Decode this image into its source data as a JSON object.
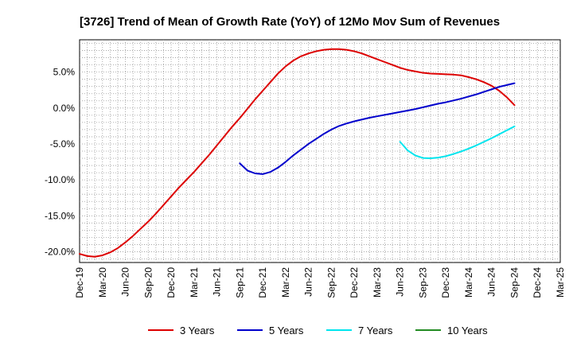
{
  "chart_data": {
    "type": "line",
    "title": "[3726]  Trend of Mean of Growth Rate (YoY) of 12Mo Mov Sum of Revenues",
    "xlabel": "",
    "ylabel": "",
    "ylim": [
      -21.5,
      9.5
    ],
    "y_ticks": [
      5,
      0,
      -5,
      -10,
      -15,
      -20
    ],
    "y_tick_labels": [
      "5.0%",
      "0.0%",
      "-5.0%",
      "-10.0%",
      "-15.0%",
      "-20.0%"
    ],
    "x_tick_labels": [
      "Dec-19",
      "Mar-20",
      "Jun-20",
      "Sep-20",
      "Dec-20",
      "Mar-21",
      "Jun-21",
      "Sep-21",
      "Dec-21",
      "Mar-22",
      "Jun-22",
      "Sep-22",
      "Dec-22",
      "Mar-23",
      "Jun-23",
      "Sep-23",
      "Dec-23",
      "Mar-24",
      "Jun-24",
      "Sep-24",
      "Dec-24",
      "Mar-25"
    ],
    "x_unit": "months since Dec-19",
    "xlim": [
      0,
      63
    ],
    "grid": true,
    "legend_position": "bottom",
    "series": [
      {
        "name": "3 Years",
        "color": "#dd0000",
        "points": [
          [
            0,
            -20.3
          ],
          [
            1,
            -20.6
          ],
          [
            2,
            -20.7
          ],
          [
            3,
            -20.5
          ],
          [
            4,
            -20.1
          ],
          [
            5,
            -19.5
          ],
          [
            6,
            -18.7
          ],
          [
            7,
            -17.8
          ],
          [
            8,
            -16.8
          ],
          [
            9,
            -15.8
          ],
          [
            10,
            -14.7
          ],
          [
            11,
            -13.5
          ],
          [
            12,
            -12.3
          ],
          [
            13,
            -11.1
          ],
          [
            14,
            -10.0
          ],
          [
            15,
            -8.9
          ],
          [
            16,
            -7.7
          ],
          [
            17,
            -6.5
          ],
          [
            18,
            -5.2
          ],
          [
            19,
            -3.9
          ],
          [
            20,
            -2.6
          ],
          [
            21,
            -1.4
          ],
          [
            22,
            -0.1
          ],
          [
            23,
            1.2
          ],
          [
            24,
            2.4
          ],
          [
            25,
            3.6
          ],
          [
            26,
            4.8
          ],
          [
            27,
            5.8
          ],
          [
            28,
            6.6
          ],
          [
            29,
            7.2
          ],
          [
            30,
            7.6
          ],
          [
            31,
            7.9
          ],
          [
            32,
            8.1
          ],
          [
            33,
            8.2
          ],
          [
            34,
            8.2
          ],
          [
            35,
            8.1
          ],
          [
            36,
            7.9
          ],
          [
            37,
            7.6
          ],
          [
            38,
            7.2
          ],
          [
            39,
            6.8
          ],
          [
            40,
            6.4
          ],
          [
            41,
            6.0
          ],
          [
            42,
            5.6
          ],
          [
            43,
            5.3
          ],
          [
            44,
            5.1
          ],
          [
            45,
            4.9
          ],
          [
            46,
            4.8
          ],
          [
            47,
            4.75
          ],
          [
            48,
            4.7
          ],
          [
            49,
            4.65
          ],
          [
            50,
            4.55
          ],
          [
            51,
            4.3
          ],
          [
            52,
            4.0
          ],
          [
            53,
            3.6
          ],
          [
            54,
            3.1
          ],
          [
            55,
            2.4
          ],
          [
            56,
            1.5
          ],
          [
            57,
            0.4
          ]
        ]
      },
      {
        "name": "5 Years",
        "color": "#0000cc",
        "points": [
          [
            21,
            -7.7
          ],
          [
            22,
            -8.7
          ],
          [
            23,
            -9.1
          ],
          [
            24,
            -9.2
          ],
          [
            25,
            -8.9
          ],
          [
            26,
            -8.3
          ],
          [
            27,
            -7.5
          ],
          [
            28,
            -6.6
          ],
          [
            29,
            -5.8
          ],
          [
            30,
            -5.0
          ],
          [
            31,
            -4.3
          ],
          [
            32,
            -3.6
          ],
          [
            33,
            -3.0
          ],
          [
            34,
            -2.5
          ],
          [
            35,
            -2.15
          ],
          [
            36,
            -1.85
          ],
          [
            37,
            -1.6
          ],
          [
            38,
            -1.35
          ],
          [
            39,
            -1.15
          ],
          [
            40,
            -0.95
          ],
          [
            41,
            -0.75
          ],
          [
            42,
            -0.55
          ],
          [
            43,
            -0.35
          ],
          [
            44,
            -0.15
          ],
          [
            45,
            0.1
          ],
          [
            46,
            0.35
          ],
          [
            47,
            0.6
          ],
          [
            48,
            0.8
          ],
          [
            49,
            1.05
          ],
          [
            50,
            1.3
          ],
          [
            51,
            1.6
          ],
          [
            52,
            1.9
          ],
          [
            53,
            2.25
          ],
          [
            54,
            2.6
          ],
          [
            55,
            2.95
          ],
          [
            56,
            3.2
          ],
          [
            57,
            3.45
          ]
        ]
      },
      {
        "name": "7 Years",
        "color": "#00e5ee",
        "points": [
          [
            42,
            -4.7
          ],
          [
            43,
            -5.9
          ],
          [
            44,
            -6.6
          ],
          [
            45,
            -6.95
          ],
          [
            46,
            -7.0
          ],
          [
            47,
            -6.9
          ],
          [
            48,
            -6.7
          ],
          [
            49,
            -6.4
          ],
          [
            50,
            -6.05
          ],
          [
            51,
            -5.65
          ],
          [
            52,
            -5.2
          ],
          [
            53,
            -4.7
          ],
          [
            54,
            -4.2
          ],
          [
            55,
            -3.65
          ],
          [
            56,
            -3.1
          ],
          [
            57,
            -2.55
          ]
        ]
      },
      {
        "name": "10 Years",
        "color": "#228b22",
        "points": []
      }
    ]
  }
}
